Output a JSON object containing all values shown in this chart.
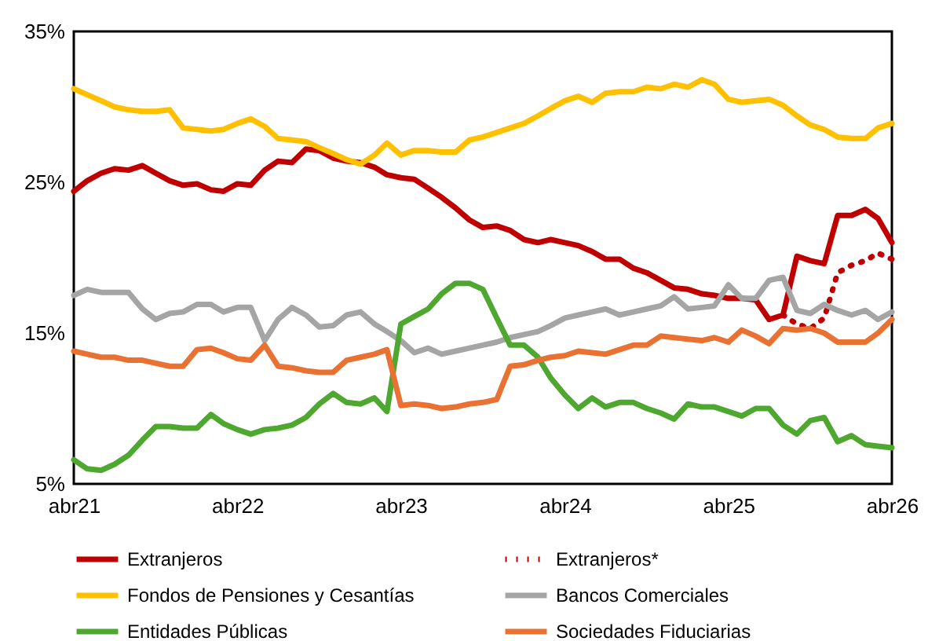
{
  "chart_data": {
    "type": "line",
    "legend": "bottom",
    "x": [
      "2021-04",
      "2021-05",
      "2021-06",
      "2021-07",
      "2021-08",
      "2021-09",
      "2021-10",
      "2021-11",
      "2021-12",
      "2022-01",
      "2022-02",
      "2022-03",
      "2022-04",
      "2022-05",
      "2022-06",
      "2022-07",
      "2022-08",
      "2022-09",
      "2022-10",
      "2022-11",
      "2022-12",
      "2023-01",
      "2023-02",
      "2023-03",
      "2023-04",
      "2023-05",
      "2023-06",
      "2023-07",
      "2023-08",
      "2023-09",
      "2023-10",
      "2023-11",
      "2023-12",
      "2024-01",
      "2024-02",
      "2024-03",
      "2024-04",
      "2024-05",
      "2024-06",
      "2024-07",
      "2024-08",
      "2024-09",
      "2024-10",
      "2024-11",
      "2024-12",
      "2025-01",
      "2025-02",
      "2025-03",
      "2025-04",
      "2025-05",
      "2025-06",
      "2025-07",
      "2025-08",
      "2025-09",
      "2025-10",
      "2025-11",
      "2025-12",
      "2026-01",
      "2026-02",
      "2026-03",
      "2026-04"
    ],
    "xlim": [
      "2021-04",
      "2026-04"
    ],
    "xticks": [
      {
        "value": "2021-04",
        "label": "abr21"
      },
      {
        "value": "2022-04",
        "label": "abr22"
      },
      {
        "value": "2023-04",
        "label": "abr23"
      },
      {
        "value": "2024-04",
        "label": "abr24"
      },
      {
        "value": "2025-04",
        "label": "abr25"
      },
      {
        "value": "2026-04",
        "label": "abr26"
      }
    ],
    "ylim": [
      5,
      35
    ],
    "yticks": [
      {
        "value": 5,
        "label": "5%"
      },
      {
        "value": 15,
        "label": "15%"
      },
      {
        "value": 25,
        "label": "25%"
      },
      {
        "value": 35,
        "label": "35%"
      }
    ],
    "series": [
      {
        "name": "Extranjeros",
        "color": "#c00000",
        "line_style": "solid",
        "values": [
          24.4,
          25.1,
          25.6,
          25.9,
          25.8,
          26.1,
          25.6,
          25.1,
          24.8,
          24.9,
          24.5,
          24.4,
          24.9,
          24.8,
          25.8,
          26.4,
          26.3,
          27.2,
          27.1,
          26.6,
          26.4,
          26.3,
          26.0,
          25.5,
          25.3,
          25.2,
          24.6,
          24.0,
          23.3,
          22.5,
          22.0,
          22.1,
          21.8,
          21.2,
          21.0,
          21.2,
          21.0,
          20.8,
          20.4,
          19.9,
          19.9,
          19.3,
          19.0,
          18.5,
          18.0,
          17.9,
          17.6,
          17.5,
          17.3,
          17.3,
          17.2,
          15.9,
          16.2,
          20.1,
          19.8,
          19.6,
          22.8,
          22.8,
          23.2,
          22.6,
          21.0
        ]
      },
      {
        "name": "Extranjeros*",
        "color": "#c00000",
        "line_style": "dotted",
        "x": [
          "2025-08",
          "2025-09",
          "2025-10",
          "2025-11",
          "2025-12",
          "2026-01",
          "2026-02",
          "2026-03",
          "2026-04"
        ],
        "values": [
          16.2,
          15.6,
          15.3,
          16.0,
          19.0,
          19.5,
          19.8,
          20.3,
          19.9
        ]
      },
      {
        "name": "Fondos de Pensiones y Cesantías",
        "color": "#ffc000",
        "line_style": "solid",
        "values": [
          31.2,
          30.8,
          30.4,
          30.0,
          29.8,
          29.7,
          29.7,
          29.8,
          28.6,
          28.5,
          28.4,
          28.5,
          28.9,
          29.2,
          28.7,
          27.9,
          27.8,
          27.7,
          27.3,
          26.9,
          26.5,
          26.2,
          26.8,
          27.6,
          26.8,
          27.1,
          27.1,
          27.0,
          27.0,
          27.8,
          28.0,
          28.3,
          28.6,
          28.9,
          29.4,
          29.9,
          30.4,
          30.7,
          30.3,
          30.9,
          31.0,
          31.0,
          31.3,
          31.2,
          31.5,
          31.3,
          31.8,
          31.5,
          30.5,
          30.3,
          30.4,
          30.5,
          30.1,
          29.4,
          28.8,
          28.5,
          28.0,
          27.9,
          27.9,
          28.6,
          28.9
        ]
      },
      {
        "name": "Bancos Comerciales",
        "color": "#a5a5a5",
        "line_style": "solid",
        "values": [
          17.5,
          17.9,
          17.7,
          17.7,
          17.7,
          16.6,
          15.9,
          16.3,
          16.4,
          16.9,
          16.9,
          16.4,
          16.7,
          16.7,
          14.5,
          15.9,
          16.7,
          16.2,
          15.4,
          15.5,
          16.2,
          16.4,
          15.6,
          15.1,
          14.5,
          13.7,
          14.0,
          13.6,
          13.8,
          14.0,
          14.2,
          14.4,
          14.7,
          14.9,
          15.1,
          15.5,
          16.0,
          16.2,
          16.4,
          16.6,
          16.2,
          16.4,
          16.6,
          16.8,
          17.4,
          16.6,
          16.7,
          16.8,
          18.2,
          17.3,
          17.3,
          18.5,
          18.7,
          16.5,
          16.3,
          16.9,
          16.5,
          16.2,
          16.5,
          15.9,
          16.4
        ]
      },
      {
        "name": "Entidades Públicas",
        "color": "#4ea72e",
        "line_style": "solid",
        "values": [
          6.6,
          6.0,
          5.9,
          6.3,
          6.9,
          7.9,
          8.8,
          8.8,
          8.7,
          8.7,
          9.6,
          9.0,
          8.6,
          8.3,
          8.6,
          8.7,
          8.9,
          9.4,
          10.3,
          11.0,
          10.4,
          10.3,
          10.7,
          9.8,
          15.6,
          16.1,
          16.6,
          17.6,
          18.3,
          18.3,
          17.9,
          16.0,
          14.2,
          14.2,
          13.4,
          12.0,
          10.9,
          10.0,
          10.7,
          10.1,
          10.4,
          10.4,
          10.0,
          9.7,
          9.3,
          10.3,
          10.1,
          10.1,
          9.8,
          9.5,
          10.0,
          10.0,
          8.9,
          8.3,
          9.2,
          9.4,
          7.8,
          8.2,
          7.6,
          7.5,
          7.4
        ]
      },
      {
        "name": "Sociedades Fiduciarias",
        "color": "#e97132",
        "line_style": "solid",
        "values": [
          13.8,
          13.6,
          13.4,
          13.4,
          13.2,
          13.2,
          13.0,
          12.8,
          12.8,
          13.9,
          14.0,
          13.7,
          13.3,
          13.2,
          14.2,
          12.8,
          12.7,
          12.5,
          12.4,
          12.4,
          13.2,
          13.4,
          13.6,
          13.9,
          10.2,
          10.3,
          10.2,
          10.0,
          10.1,
          10.3,
          10.4,
          10.6,
          12.8,
          12.9,
          13.2,
          13.4,
          13.5,
          13.8,
          13.7,
          13.6,
          13.9,
          14.2,
          14.2,
          14.8,
          14.7,
          14.6,
          14.5,
          14.7,
          14.4,
          15.2,
          14.8,
          14.3,
          15.3,
          15.2,
          15.3,
          15.0,
          14.4,
          14.4,
          14.4,
          15.0,
          15.9
        ]
      }
    ]
  }
}
